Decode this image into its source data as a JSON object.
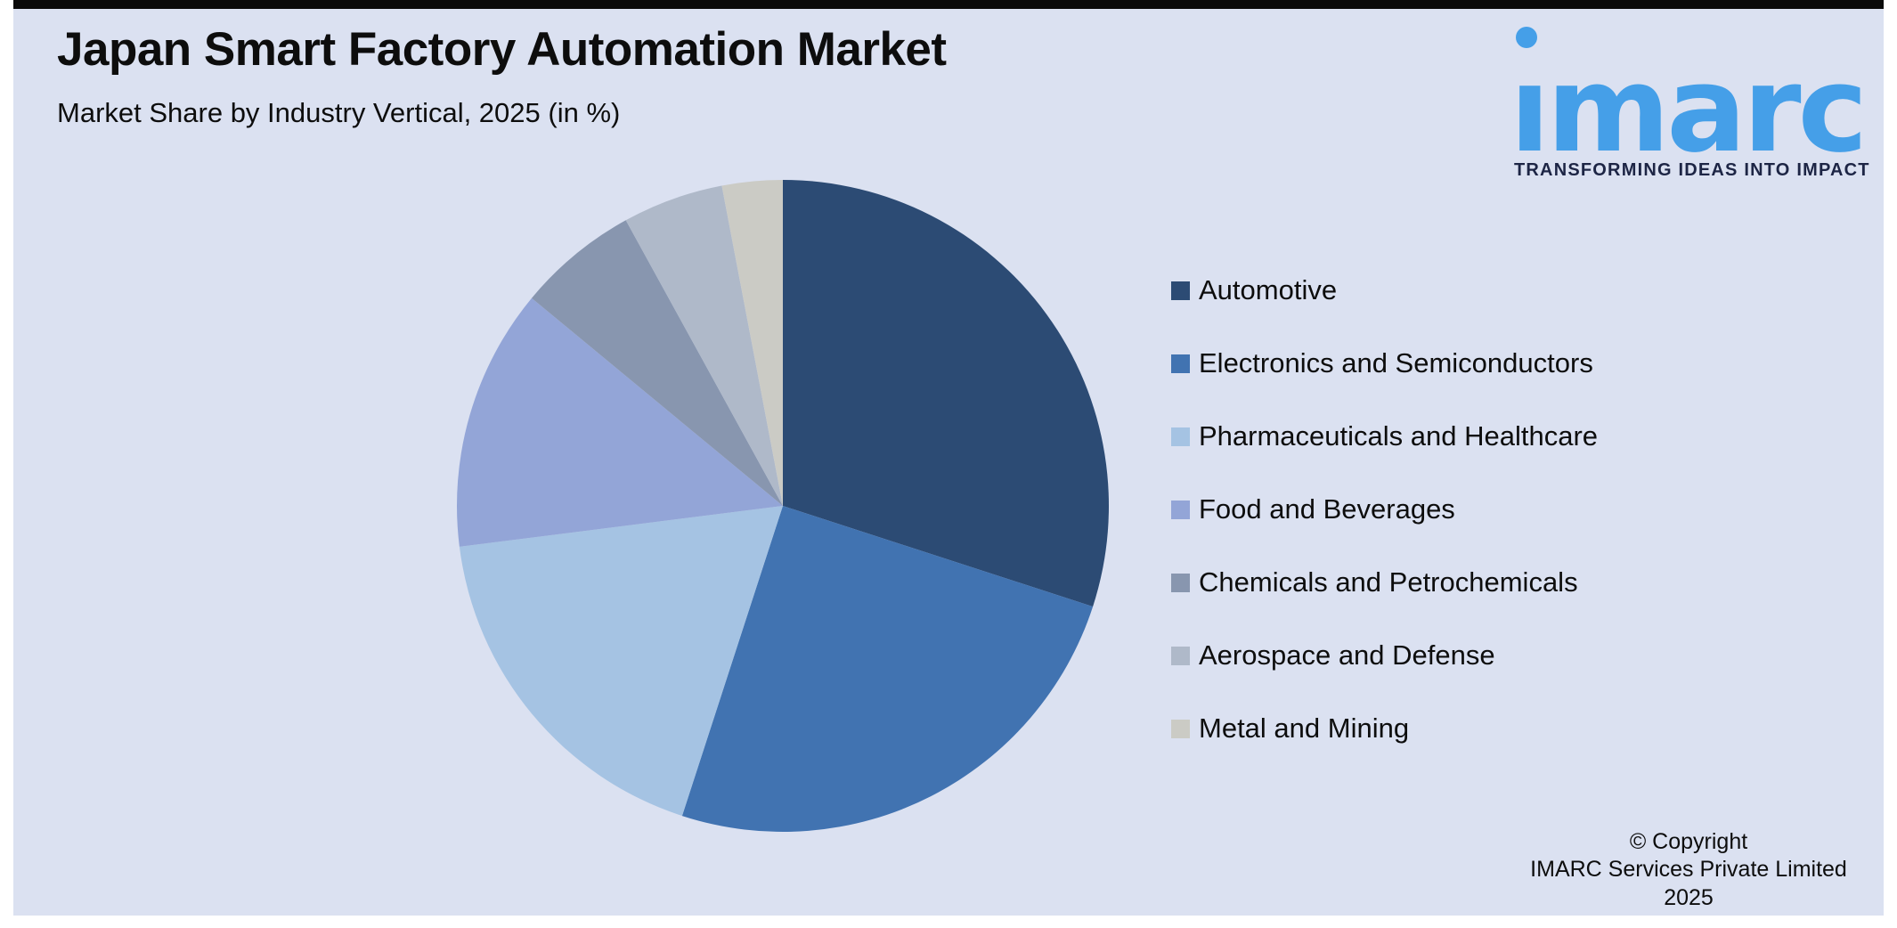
{
  "page": {
    "background_color": "#dbe1f1",
    "frame_color": "#ffffff",
    "top_bar_color": "#0a0a0a"
  },
  "header": {
    "title": "Japan Smart Factory Automation Market",
    "subtitle": "Market Share by Industry Vertical, 2025 (in %)"
  },
  "logo": {
    "name": "imarc",
    "wordmark_glyphs": "ımarc",
    "tagline": "TRANSFORMING IDEAS INTO IMPACT",
    "brand_blue": "#459fe8",
    "tagline_color": "#1d2545"
  },
  "copyright": {
    "line1": "© Copyright",
    "line2": "IMARC Services Private Limited 2025"
  },
  "chart_data": {
    "type": "pie",
    "title": "Japan Smart Factory Automation Market",
    "subtitle": "Market Share by Industry Vertical, 2025 (in %)",
    "unit": "%",
    "start_angle_deg": 0,
    "direction": "clockwise",
    "legend_position": "right",
    "data_labels_shown": false,
    "categories": [
      "Automotive",
      "Electronics and Semiconductors",
      "Pharmaceuticals and Healthcare",
      "Food and Beverages",
      "Chemicals and Petrochemicals",
      "Aerospace and Defense",
      "Metal and Mining"
    ],
    "values": [
      30,
      25,
      18,
      13,
      6,
      5,
      3
    ],
    "colors": [
      "#2c4b74",
      "#4173b1",
      "#a5c3e3",
      "#93a5d7",
      "#8896af",
      "#afb9c9",
      "#cbcbc5"
    ]
  }
}
